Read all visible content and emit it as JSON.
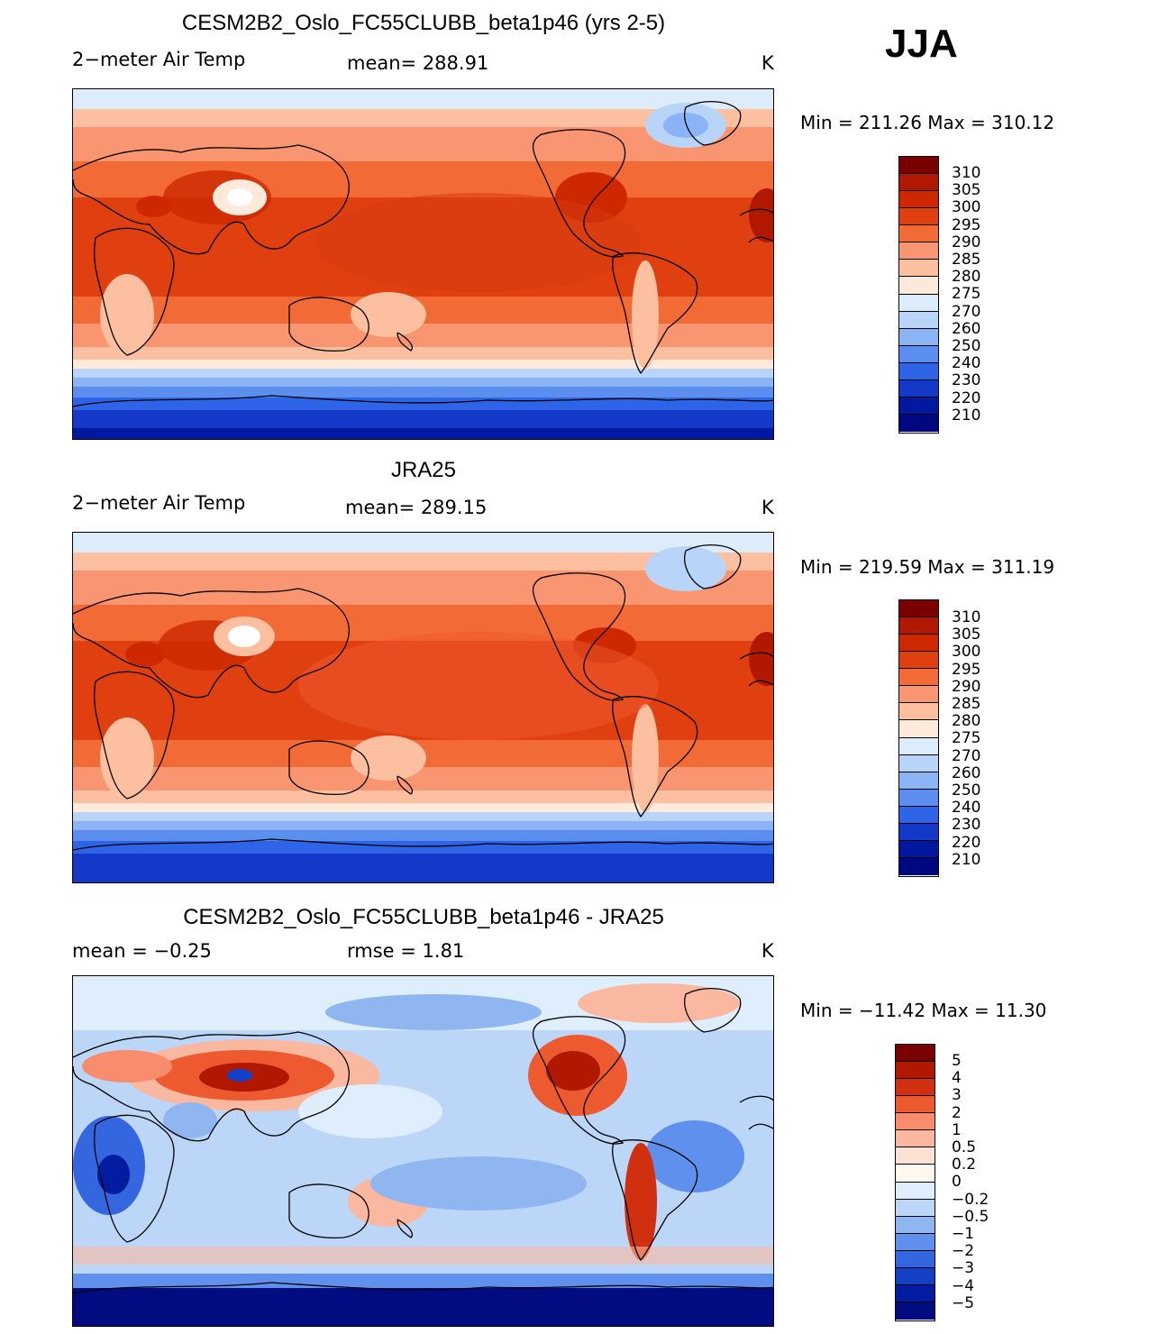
{
  "season": "JJA",
  "panels": [
    {
      "title": "CESM2B2_Oslo_FC55CLUBB_beta1p46 (yrs 2-5)",
      "variable": "2−meter Air Temp",
      "stat": "mean=  288.91",
      "units": "K",
      "minmax": "Min  =  211.26  Max  =  310.12",
      "colorbar_labels": [
        "310",
        "305",
        "300",
        "295",
        "290",
        "285",
        "280",
        "275",
        "270",
        "260",
        "250",
        "240",
        "230",
        "220",
        "210"
      ]
    },
    {
      "title": "JRA25",
      "variable": "2−meter Air Temp",
      "stat": "mean=  289.15",
      "units": "K",
      "minmax": "Min  =  219.59  Max  =  311.19",
      "colorbar_labels": [
        "310",
        "305",
        "300",
        "295",
        "290",
        "285",
        "280",
        "275",
        "270",
        "260",
        "250",
        "240",
        "230",
        "220",
        "210"
      ]
    },
    {
      "title": "CESM2B2_Oslo_FC55CLUBB_beta1p46 - JRA25",
      "stat_left": "mean  =   −0.25",
      "stat": "rmse  =    1.81",
      "units": "K",
      "minmax": "Min  =  −11.42  Max  =   11.30",
      "colorbar_labels": [
        "5",
        "4",
        "3",
        "2",
        "1",
        "0.5",
        "0.2",
        "0",
        "−0.2",
        "−0.5",
        "−1",
        "−2",
        "−3",
        "−4",
        "−5"
      ]
    }
  ],
  "temp_colors": [
    "#7a0000",
    "#b01800",
    "#cd2800",
    "#e04010",
    "#f26a35",
    "#f99570",
    "#fcc0a0",
    "#feeada",
    "#dcecfa",
    "#b8d4f8",
    "#8ab4f5",
    "#5c8ef0",
    "#2e64e8",
    "#1438c8",
    "#0018a0",
    "#000880"
  ],
  "diff_colors": [
    "#7a0000",
    "#b01800",
    "#d03010",
    "#ee5a30",
    "#f88c6c",
    "#fbb8a0",
    "#fde2d4",
    "#fff8f0",
    "#dfeefc",
    "#bcd6f8",
    "#90b6f2",
    "#6090ee",
    "#3466e0",
    "#1440c8",
    "#001ca0",
    "#000c80"
  ]
}
